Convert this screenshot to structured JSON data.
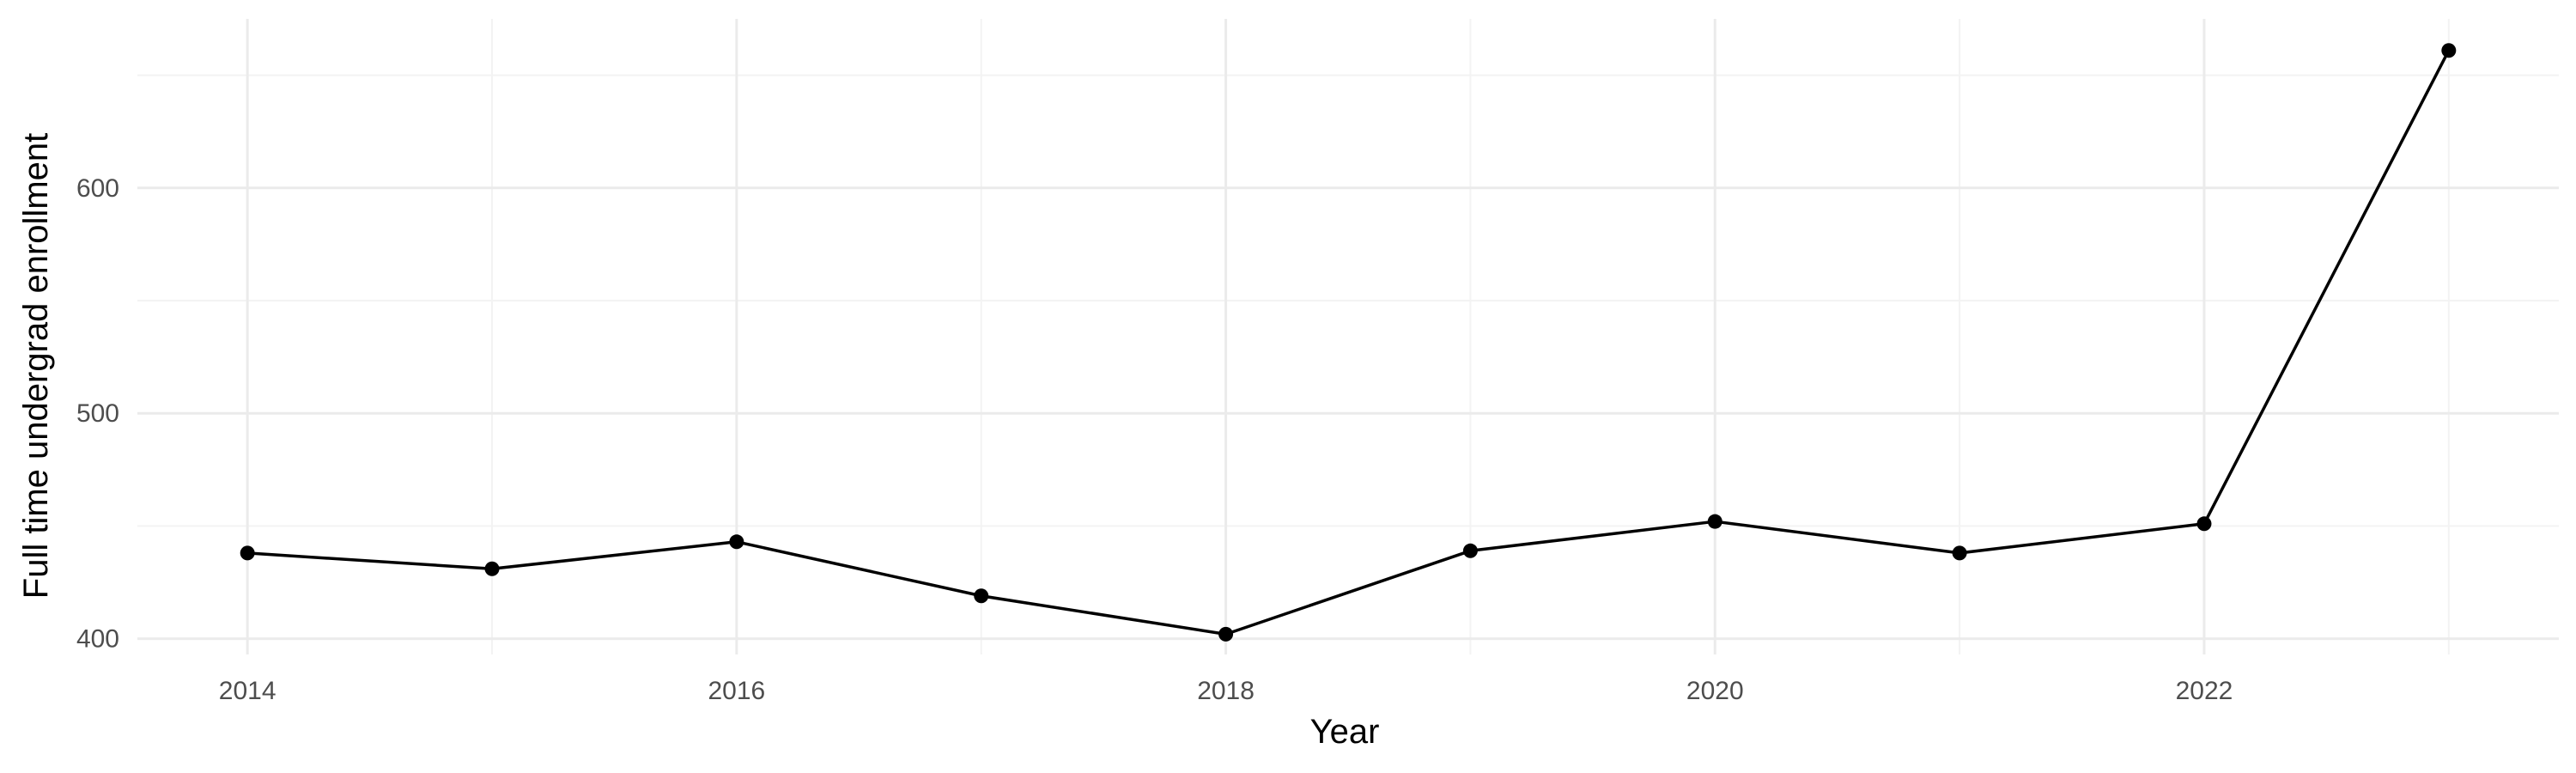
{
  "chart_data": {
    "type": "line",
    "title": "",
    "xlabel": "Year",
    "ylabel": "Full time undergrad enrollment",
    "x": [
      2014,
      2015,
      2016,
      2017,
      2018,
      2019,
      2020,
      2021,
      2022,
      2023
    ],
    "series": [
      {
        "values": [
          438,
          431,
          443,
          419,
          402,
          439,
          452,
          438,
          451,
          661
        ]
      }
    ],
    "xlim": [
      2013.55,
      2023.45
    ],
    "ylim": [
      393,
      675
    ],
    "x_ticks": [
      2014,
      2016,
      2018,
      2020,
      2022
    ],
    "x_tick_labels": [
      "2014",
      "2016",
      "2018",
      "2020",
      "2022"
    ],
    "y_ticks": [
      400,
      500,
      600
    ],
    "y_tick_labels": [
      "400",
      "500",
      "600"
    ],
    "grid": true,
    "legend": "none",
    "colors": {
      "line": "#000000",
      "grid_major": "#ebebeb",
      "grid_minor": "#f3f3f3",
      "tick_text": "#4d4d4d"
    }
  }
}
